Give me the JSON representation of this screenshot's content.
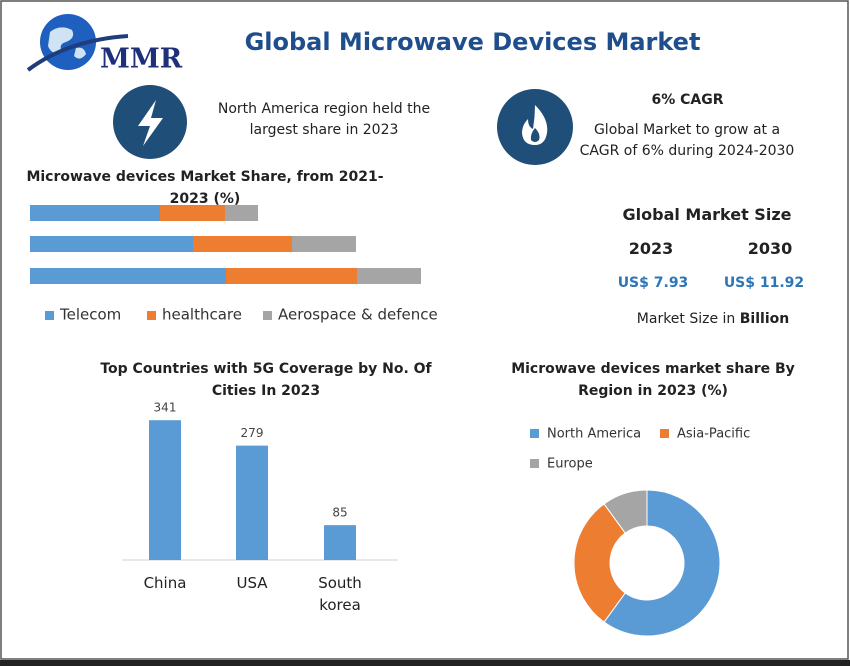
{
  "logo": "MMR",
  "title": "Global Microwave Devices Market",
  "highlights": [
    {
      "text": "North America region held the largest share in 2023"
    },
    {
      "title": "6% CAGR",
      "text": "Global Market to grow at a CAGR of 6% during 2024-2030"
    }
  ],
  "market_size": {
    "title": "Global Market Size",
    "years": [
      "2023",
      "2030"
    ],
    "values": [
      "US$ 7.93",
      "US$ 11.92"
    ],
    "note": "Market Size in",
    "unit": "Billion"
  },
  "chart_data": [
    {
      "type": "stacked-hbar",
      "title": "Microwave devices Market Share, from 2021-2023 (%)",
      "categories": [
        null,
        null,
        null
      ],
      "series": [
        {
          "name": "Telecom",
          "color": "#5b9bd5",
          "values": [
            130,
            163,
            196
          ]
        },
        {
          "name": "healthcare",
          "color": "#ed7d31",
          "values": [
            65,
            99,
            131
          ]
        },
        {
          "name": "Aerospace & defence",
          "color": "#a5a5a5",
          "values": [
            33,
            64,
            64
          ]
        }
      ]
    },
    {
      "type": "bar",
      "title": "Top Countries with 5G Coverage by No. Of Cities In 2023",
      "categories": [
        "China",
        "USA",
        "South korea"
      ],
      "values": [
        341,
        279,
        85
      ],
      "color": "#5b9bd5"
    },
    {
      "type": "pie",
      "title": "Microwave devices market share By Region in 2023 (%)",
      "donut": true,
      "categories": [
        "North America",
        "Asia-Pacific",
        "Europe"
      ],
      "values": [
        60,
        30,
        10
      ],
      "colors": [
        "#5b9bd5",
        "#ed7d31",
        "#a5a5a5"
      ]
    }
  ]
}
